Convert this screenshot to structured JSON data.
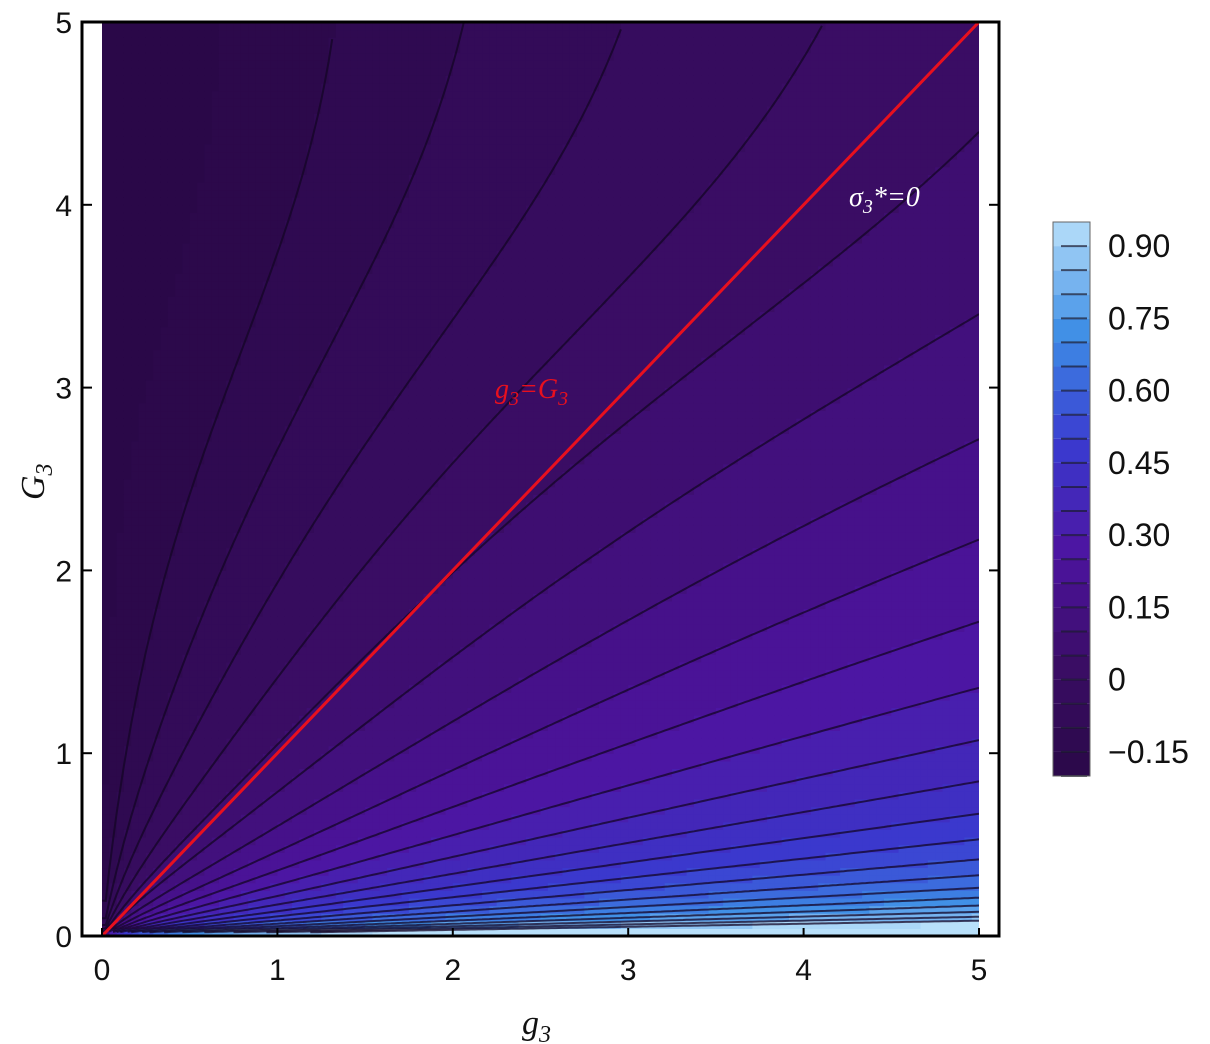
{
  "chart_data": {
    "type": "heatmap",
    "subtype": "contour",
    "title": "",
    "xlabel": {
      "main": "g",
      "sub": "3"
    },
    "ylabel": {
      "main": "G",
      "sub": "3"
    },
    "xlim": [
      0,
      5
    ],
    "ylim": [
      0,
      5
    ],
    "x_ticks": [
      "0",
      "1",
      "2",
      "3",
      "4",
      "5"
    ],
    "y_ticks": [
      "0",
      "1",
      "2",
      "3",
      "4",
      "5"
    ],
    "grid": false,
    "colorbar": {
      "placement": "right",
      "range": [
        -0.2,
        0.95
      ],
      "step": 0.05,
      "ticks": [
        {
          "value": 0.9,
          "label": "0.90"
        },
        {
          "value": 0.75,
          "label": "0.75"
        },
        {
          "value": 0.6,
          "label": "0.60"
        },
        {
          "value": 0.45,
          "label": "0.45"
        },
        {
          "value": 0.3,
          "label": "0.30"
        },
        {
          "value": 0.15,
          "label": "0.15"
        },
        {
          "value": 0.0,
          "label": "0"
        },
        {
          "value": -0.15,
          "label": "−0.15"
        }
      ]
    },
    "colors": [
      "#2a0848",
      "#3a0d65",
      "#4d14a0",
      "#3a3ad0",
      "#3e8ee6",
      "#b8e0fa"
    ],
    "lines": [
      {
        "points": [
          [
            0,
            0
          ],
          [
            5,
            5
          ]
        ],
        "color": "#e8101e",
        "label": {
          "main": "g",
          "sub": "3",
          "rest": "=G",
          "sub2": "3"
        }
      }
    ],
    "annotations": [
      {
        "main": "σ",
        "sub": "3",
        "rest": "*=0",
        "color": "#ffffff"
      }
    ]
  }
}
